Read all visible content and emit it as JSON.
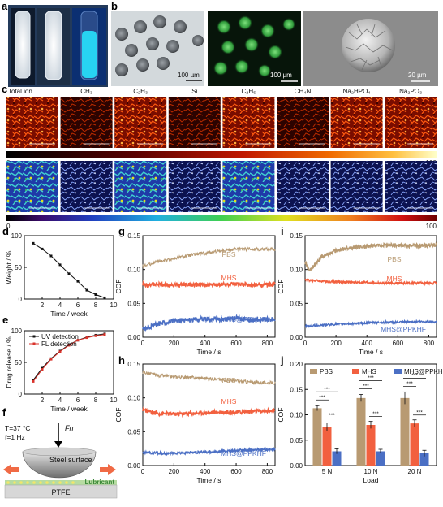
{
  "panels": {
    "a": {
      "letter": "a"
    },
    "b": {
      "letter": "b",
      "scale_left": "100 µm",
      "scale_mid": "100 µm",
      "scale_right": "20 µm"
    },
    "c": {
      "letter": "c",
      "ion_labels": [
        "Total ion",
        "CH₃",
        "C₂H₃",
        "Si",
        "C₂H₅",
        "CH₄N",
        "Na₂HPO₄",
        "Na₂PO₃"
      ],
      "bar1_min": "0",
      "bar1_max": "100",
      "bar2_min": "0",
      "bar2_max": "100"
    },
    "f": {
      "letter": "f",
      "temp": "T=37 °C",
      "freq": "f=1 Hz",
      "force": "Fn",
      "steel": "Steel surface",
      "lubricant": "Lubricant",
      "ptfe": "PTFE"
    }
  },
  "colors": {
    "pbs": "#b89a72",
    "mhs": "#f2603f",
    "mhs_ppkhf": "#4b6fc4",
    "uv": "#111111",
    "fl": "#d9332b"
  },
  "chart_data": [
    {
      "id": "d",
      "type": "line",
      "xlabel": "Time / week",
      "ylabel": "Weight / %",
      "xlim": [
        0,
        10
      ],
      "ylim": [
        0,
        100
      ],
      "xticks": [
        2,
        4,
        6,
        8,
        10
      ],
      "yticks": [
        0,
        50,
        100
      ],
      "series": [
        {
          "x": [
            1,
            2,
            3,
            4,
            5,
            6,
            7,
            8,
            9
          ],
          "y": [
            88,
            79,
            68,
            54,
            40,
            28,
            14,
            7,
            2
          ]
        }
      ]
    },
    {
      "id": "e",
      "type": "line",
      "xlabel": "Time / week",
      "ylabel": "Drug release / %",
      "xlim": [
        0,
        10
      ],
      "ylim": [
        0,
        100
      ],
      "xticks": [
        2,
        4,
        6,
        8,
        10
      ],
      "yticks": [
        0,
        50,
        100
      ],
      "legend": "top-left",
      "series": [
        {
          "name": "UV detection",
          "x": [
            1,
            2,
            3,
            4,
            5,
            6,
            7,
            8,
            9
          ],
          "y": [
            22,
            41,
            56,
            68,
            78,
            85,
            90,
            93,
            95
          ]
        },
        {
          "name": "FL detection",
          "x": [
            1,
            2,
            3,
            4,
            5,
            6,
            7,
            8,
            9
          ],
          "y": [
            20,
            39,
            55,
            67,
            77,
            85,
            89,
            92,
            94
          ]
        }
      ]
    },
    {
      "id": "g",
      "type": "line",
      "xlabel": "Time / s",
      "ylabel": "COF",
      "xlim": [
        0,
        850
      ],
      "ylim": [
        0,
        0.15
      ],
      "xticks": [
        0,
        200,
        400,
        600,
        800
      ],
      "yticks": [
        0.0,
        0.05,
        0.1,
        0.15
      ],
      "series": [
        {
          "name": "PBS",
          "x": [
            0,
            100,
            200,
            300,
            400,
            500,
            600,
            700,
            850
          ],
          "y": [
            0.105,
            0.112,
            0.116,
            0.121,
            0.124,
            0.128,
            0.13,
            0.13,
            0.13
          ]
        },
        {
          "name": "MHS",
          "x": [
            0,
            100,
            200,
            300,
            400,
            500,
            600,
            700,
            850
          ],
          "y": [
            0.078,
            0.078,
            0.077,
            0.078,
            0.077,
            0.078,
            0.078,
            0.077,
            0.078
          ]
        },
        {
          "name": "MHS@PPKHF",
          "x": [
            0,
            100,
            200,
            300,
            400,
            500,
            600,
            700,
            850
          ],
          "y": [
            0.012,
            0.02,
            0.024,
            0.026,
            0.027,
            0.026,
            0.028,
            0.025,
            0.027
          ]
        }
      ]
    },
    {
      "id": "h",
      "type": "line",
      "xlabel": "Time / s",
      "ylabel": "COF",
      "xlim": [
        0,
        850
      ],
      "ylim": [
        0,
        0.15
      ],
      "xticks": [
        0,
        200,
        400,
        600,
        800
      ],
      "yticks": [
        0.0,
        0.05,
        0.1,
        0.15
      ],
      "series": [
        {
          "name": "PBS",
          "x": [
            0,
            100,
            200,
            300,
            400,
            500,
            600,
            700,
            850
          ],
          "y": [
            0.138,
            0.133,
            0.131,
            0.13,
            0.129,
            0.127,
            0.125,
            0.123,
            0.122
          ]
        },
        {
          "name": "MHS",
          "x": [
            0,
            100,
            200,
            300,
            400,
            500,
            600,
            700,
            850
          ],
          "y": [
            0.082,
            0.077,
            0.076,
            0.077,
            0.078,
            0.079,
            0.079,
            0.08,
            0.081
          ]
        },
        {
          "name": "MHS@PPKHF",
          "x": [
            0,
            100,
            200,
            300,
            400,
            500,
            600,
            700,
            850
          ],
          "y": [
            0.019,
            0.018,
            0.018,
            0.019,
            0.02,
            0.021,
            0.022,
            0.023,
            0.024
          ]
        }
      ]
    },
    {
      "id": "i",
      "type": "line",
      "xlabel": "Time / s",
      "ylabel": "COF",
      "xlim": [
        0,
        850
      ],
      "ylim": [
        0,
        0.15
      ],
      "xticks": [
        0,
        200,
        400,
        600,
        800
      ],
      "yticks": [
        0.0,
        0.05,
        0.1,
        0.15
      ],
      "series": [
        {
          "name": "PBS",
          "x": [
            0,
            30,
            100,
            200,
            300,
            400,
            500,
            600,
            700,
            850
          ],
          "y": [
            0.11,
            0.098,
            0.118,
            0.128,
            0.132,
            0.134,
            0.136,
            0.136,
            0.135,
            0.136
          ]
        },
        {
          "name": "MHS",
          "x": [
            0,
            100,
            200,
            300,
            400,
            500,
            600,
            700,
            850
          ],
          "y": [
            0.085,
            0.083,
            0.082,
            0.081,
            0.081,
            0.08,
            0.08,
            0.08,
            0.08
          ]
        },
        {
          "name": "MHS@PPKHF",
          "x": [
            0,
            100,
            200,
            300,
            400,
            500,
            600,
            700,
            850
          ],
          "y": [
            0.016,
            0.018,
            0.019,
            0.02,
            0.021,
            0.022,
            0.022,
            0.023,
            0.023
          ]
        }
      ]
    },
    {
      "id": "j",
      "type": "bar",
      "xlabel": "Load",
      "ylabel": "COF",
      "ylim": [
        0,
        0.2
      ],
      "yticks": [
        0.0,
        0.05,
        0.1,
        0.15,
        0.2
      ],
      "legend": "top",
      "categories": [
        "5 N",
        "10 N",
        "20 N"
      ],
      "series": [
        {
          "name": "PBS",
          "values": [
            0.113,
            0.133,
            0.133
          ],
          "errors": [
            0.005,
            0.007,
            0.012
          ]
        },
        {
          "name": "MHS",
          "values": [
            0.076,
            0.08,
            0.083
          ],
          "errors": [
            0.008,
            0.007,
            0.007
          ]
        },
        {
          "name": "MHS@PPKHF",
          "values": [
            0.028,
            0.028,
            0.024
          ],
          "errors": [
            0.005,
            0.004,
            0.006
          ]
        }
      ],
      "significance": "***"
    }
  ]
}
